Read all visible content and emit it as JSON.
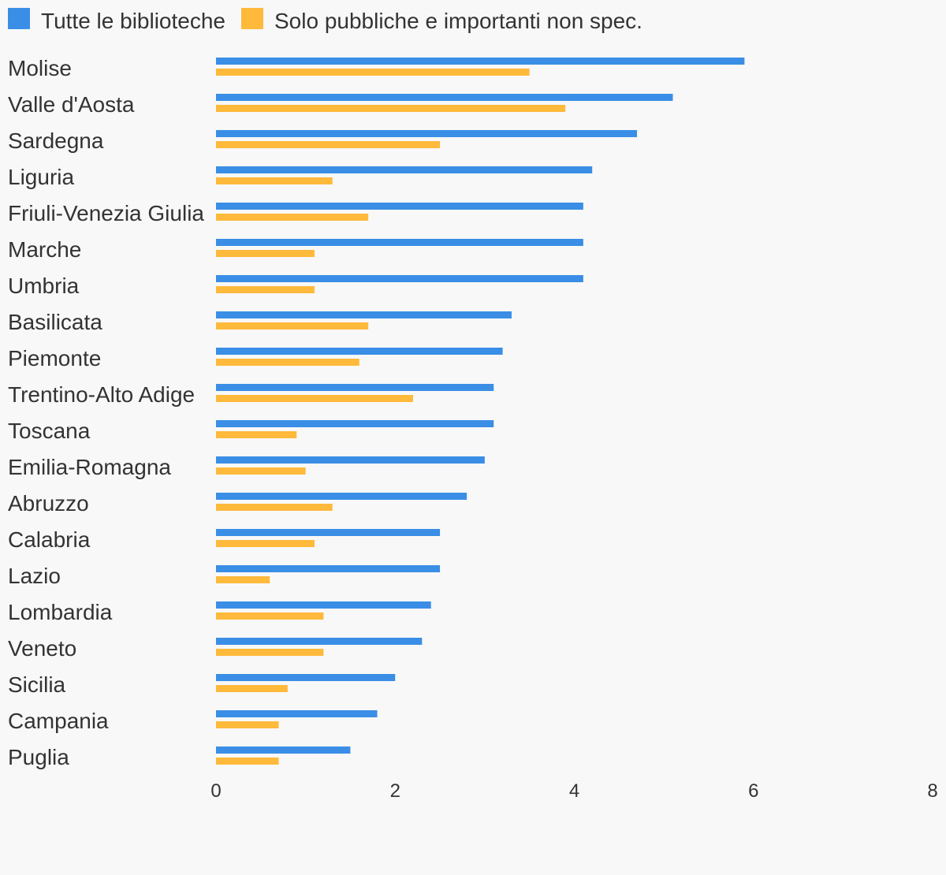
{
  "chart_data": {
    "type": "bar",
    "orientation": "horizontal",
    "categories": [
      "Molise",
      "Valle d'Aosta",
      "Sardegna",
      "Liguria",
      "Friuli-Venezia Giulia",
      "Marche",
      "Umbria",
      "Basilicata",
      "Piemonte",
      "Trentino-Alto Adige",
      "Toscana",
      "Emilia-Romagna",
      "Abruzzo",
      "Calabria",
      "Lazio",
      "Lombardia",
      "Veneto",
      "Sicilia",
      "Campania",
      "Puglia"
    ],
    "series": [
      {
        "name": "Tutte le biblioteche",
        "color": "#3a8ee6",
        "values": [
          5.9,
          5.1,
          4.7,
          4.2,
          4.1,
          4.1,
          4.1,
          3.3,
          3.2,
          3.1,
          3.1,
          3.0,
          2.8,
          2.5,
          2.5,
          2.4,
          2.3,
          2.0,
          1.8,
          1.5
        ]
      },
      {
        "name": "Solo pubbliche e importanti non spec.",
        "color": "#ffb93b",
        "values": [
          3.5,
          3.9,
          2.5,
          1.3,
          1.7,
          1.1,
          1.1,
          1.7,
          1.6,
          2.2,
          0.9,
          1.0,
          1.3,
          1.1,
          0.6,
          1.2,
          1.2,
          0.8,
          0.7,
          0.7
        ]
      }
    ],
    "xlim": [
      0,
      8
    ],
    "xticks": [
      "0",
      "2",
      "4",
      "6",
      "8"
    ],
    "title": "",
    "xlabel": "",
    "ylabel": "",
    "grid": false,
    "legend_position": "top-left"
  }
}
